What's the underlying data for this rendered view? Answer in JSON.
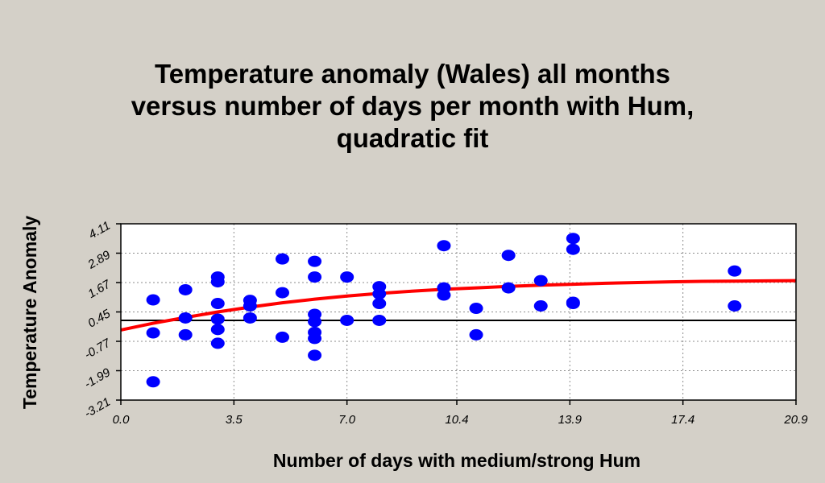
{
  "chart_data": {
    "type": "scatter",
    "title": [
      "Temperature anomaly  (Wales)  all months",
      "versus number of days per month with Hum,",
      "quadratic fit"
    ],
    "xlabel": "Number of days with  medium/strong Hum",
    "ylabel": "Temperature Anomaly",
    "xlim": [
      0.0,
      20.9
    ],
    "ylim": [
      -3.21,
      4.11
    ],
    "x_ticks": [
      0.0,
      3.5,
      7.0,
      10.4,
      13.9,
      17.4,
      20.9
    ],
    "x_tick_labels": [
      "0.0",
      "3.5",
      "7.0",
      "10.4",
      "13.9",
      "17.4",
      "20.9"
    ],
    "y_ticks": [
      4.11,
      2.89,
      1.67,
      0.45,
      -0.77,
      -1.99,
      -3.21
    ],
    "y_tick_labels": [
      "4.11",
      "2.89",
      "1.67",
      "0.45",
      "-0.77",
      "-1.99",
      "-3.21"
    ],
    "grid": true,
    "reference_line_y": 0.1,
    "points": [
      {
        "x": 1,
        "y": 0.95
      },
      {
        "x": 1,
        "y": -0.42
      },
      {
        "x": 1,
        "y": -2.45
      },
      {
        "x": 2,
        "y": 1.37
      },
      {
        "x": 2,
        "y": 0.2
      },
      {
        "x": 2,
        "y": -0.5
      },
      {
        "x": 3,
        "y": 1.9
      },
      {
        "x": 3,
        "y": 1.7
      },
      {
        "x": 3,
        "y": 0.8
      },
      {
        "x": 3,
        "y": 0.15
      },
      {
        "x": 3,
        "y": -0.28
      },
      {
        "x": 3,
        "y": -0.85
      },
      {
        "x": 4,
        "y": 0.93
      },
      {
        "x": 4,
        "y": 0.7
      },
      {
        "x": 4,
        "y": 0.2
      },
      {
        "x": 5,
        "y": 2.65
      },
      {
        "x": 5,
        "y": 1.25
      },
      {
        "x": 5,
        "y": -0.6
      },
      {
        "x": 6,
        "y": 2.55
      },
      {
        "x": 6,
        "y": 1.9
      },
      {
        "x": 6,
        "y": 0.35
      },
      {
        "x": 6,
        "y": 0.05
      },
      {
        "x": 6,
        "y": -0.4
      },
      {
        "x": 6,
        "y": -0.65
      },
      {
        "x": 6,
        "y": -1.35
      },
      {
        "x": 7,
        "y": 1.9
      },
      {
        "x": 7,
        "y": 0.1
      },
      {
        "x": 8,
        "y": 1.5
      },
      {
        "x": 8,
        "y": 1.2
      },
      {
        "x": 8,
        "y": 0.8
      },
      {
        "x": 8,
        "y": 0.1
      },
      {
        "x": 10,
        "y": 3.2
      },
      {
        "x": 10,
        "y": 1.45
      },
      {
        "x": 10,
        "y": 1.15
      },
      {
        "x": 11,
        "y": 0.6
      },
      {
        "x": 11,
        "y": -0.5
      },
      {
        "x": 12,
        "y": 2.8
      },
      {
        "x": 12,
        "y": 1.45
      },
      {
        "x": 13,
        "y": 1.75
      },
      {
        "x": 13,
        "y": 0.7
      },
      {
        "x": 14,
        "y": 3.5
      },
      {
        "x": 14,
        "y": 3.05
      },
      {
        "x": 14,
        "y": 0.85
      },
      {
        "x": 14,
        "y": 0.8
      },
      {
        "x": 19,
        "y": 2.15
      },
      {
        "x": 19,
        "y": 0.7
      }
    ],
    "fit_curve": [
      {
        "x": 0.0,
        "y": -0.3
      },
      {
        "x": 1.0,
        "y": -0.02
      },
      {
        "x": 2.0,
        "y": 0.22
      },
      {
        "x": 3.0,
        "y": 0.45
      },
      {
        "x": 4.0,
        "y": 0.65
      },
      {
        "x": 5.0,
        "y": 0.83
      },
      {
        "x": 6.0,
        "y": 0.98
      },
      {
        "x": 7.0,
        "y": 1.11
      },
      {
        "x": 8.0,
        "y": 1.22
      },
      {
        "x": 9.0,
        "y": 1.31
      },
      {
        "x": 10.0,
        "y": 1.39
      },
      {
        "x": 11.0,
        "y": 1.45
      },
      {
        "x": 12.0,
        "y": 1.51
      },
      {
        "x": 13.0,
        "y": 1.56
      },
      {
        "x": 14.0,
        "y": 1.6
      },
      {
        "x": 15.0,
        "y": 1.64
      },
      {
        "x": 16.0,
        "y": 1.67
      },
      {
        "x": 17.0,
        "y": 1.7
      },
      {
        "x": 18.0,
        "y": 1.72
      },
      {
        "x": 19.0,
        "y": 1.73
      },
      {
        "x": 20.0,
        "y": 1.74
      },
      {
        "x": 20.9,
        "y": 1.75
      }
    ],
    "colors": {
      "points": "#0000ff",
      "fit": "#ff0000",
      "reference": "#000000",
      "plot_bg": "#ffffff",
      "page_bg": "#d4d0c8",
      "grid": "#8c8c8c"
    }
  }
}
